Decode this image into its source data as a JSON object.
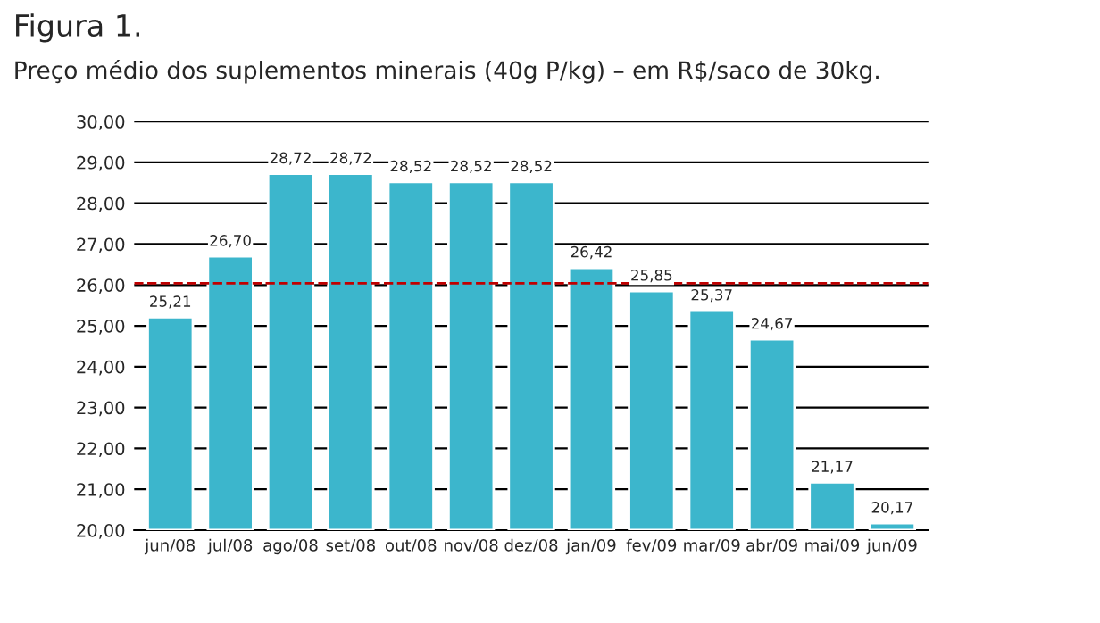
{
  "chart_data": {
    "type": "bar",
    "title": "Figura 1.",
    "subtitle": "Preço médio dos suplementos minerais (40g P/kg) – em R$/saco de 30kg.",
    "categories": [
      "jun/08",
      "jul/08",
      "ago/08",
      "set/08",
      "out/08",
      "nov/08",
      "dez/08",
      "jan/09",
      "fev/09",
      "mar/09",
      "abr/09",
      "mai/09",
      "jun/09"
    ],
    "values": [
      25.21,
      26.7,
      28.72,
      28.72,
      28.52,
      28.52,
      28.52,
      26.42,
      25.85,
      25.37,
      24.67,
      21.17,
      20.17
    ],
    "value_labels": [
      "25,21",
      "26,70",
      "28,72",
      "28,72",
      "28,52",
      "28,52",
      "28,52",
      "26,42",
      "25,85",
      "25,37",
      "24,67",
      "21,17",
      "20,17"
    ],
    "color": "#3cb6cc",
    "ylim": [
      20,
      30
    ],
    "yticks": [
      {
        "value": 20,
        "label": "20,00"
      },
      {
        "value": 21,
        "label": "21,00"
      },
      {
        "value": 22,
        "label": "22,00"
      },
      {
        "value": 23,
        "label": "23,00"
      },
      {
        "value": 24,
        "label": "24,00"
      },
      {
        "value": 25,
        "label": "25,00"
      },
      {
        "value": 26,
        "label": "26,00"
      },
      {
        "value": 27,
        "label": "27,00"
      },
      {
        "value": 28,
        "label": "28,00"
      },
      {
        "value": 29,
        "label": "29,00"
      },
      {
        "value": 30,
        "label": "30,00"
      }
    ],
    "grid": "y",
    "ref_lines": [
      {
        "axis": "y",
        "value": 26.04,
        "color": "#c00000",
        "line_style": "dashed"
      }
    ]
  }
}
